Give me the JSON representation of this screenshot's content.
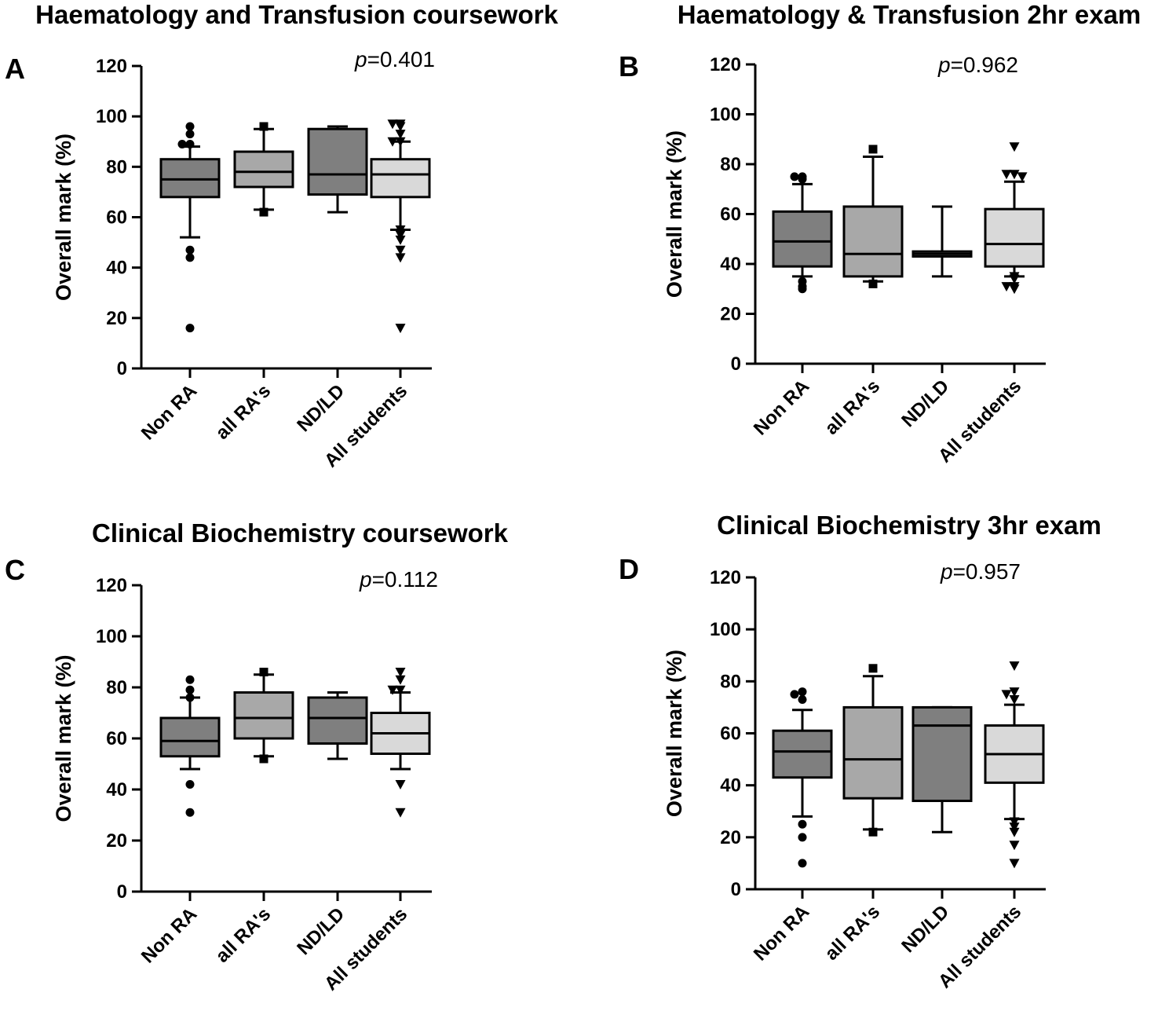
{
  "chart_data": [
    {
      "panel": "A",
      "title": "Haematology and Transfusion coursework",
      "type": "box",
      "ylabel": "Overall mark (%)",
      "xlabel": "",
      "ylim": [
        0,
        120
      ],
      "yticks": [
        0,
        20,
        40,
        60,
        80,
        100,
        120
      ],
      "p_prefix": "p",
      "p_value": "=0.401",
      "categories": [
        "Non RA",
        "all RA's",
        "ND/LD",
        "All students"
      ],
      "boxes": [
        {
          "q1": 68,
          "median": 75,
          "q3": 83,
          "whisker_low": 52,
          "whisker_high": 88,
          "fill": "#7f7f7f",
          "marker": "circle",
          "outliers": [
            96,
            93,
            89,
            89,
            47,
            44,
            16
          ]
        },
        {
          "q1": 72,
          "median": 78,
          "q3": 86,
          "whisker_low": 63,
          "whisker_high": 95,
          "fill": "#a8a8a8",
          "marker": "square",
          "outliers": [
            96,
            62
          ]
        },
        {
          "q1": 69,
          "median": 77,
          "q3": 95,
          "whisker_low": 62,
          "whisker_high": 96,
          "fill": "#7f7f7f",
          "marker": "none",
          "outliers": []
        },
        {
          "q1": 68,
          "median": 77,
          "q3": 83,
          "whisker_low": 55,
          "whisker_high": 90,
          "fill": "#d9d9d9",
          "marker": "triangle",
          "outliers": [
            97,
            97,
            96,
            93,
            90,
            90,
            55,
            53,
            51,
            47,
            44,
            16
          ]
        }
      ]
    },
    {
      "panel": "B",
      "title": "Haematology & Transfusion 2hr exam",
      "type": "box",
      "ylabel": "Overall mark (%)",
      "xlabel": "",
      "ylim": [
        0,
        120
      ],
      "yticks": [
        0,
        20,
        40,
        60,
        80,
        100,
        120
      ],
      "p_prefix": "p",
      "p_value": "=0.962",
      "categories": [
        "Non RA",
        "all RA's",
        "ND/LD",
        "All students"
      ],
      "boxes": [
        {
          "q1": 39,
          "median": 49,
          "q3": 61,
          "whisker_low": 35,
          "whisker_high": 72,
          "fill": "#7f7f7f",
          "marker": "circle",
          "outliers": [
            75,
            75,
            74,
            33,
            31,
            30
          ]
        },
        {
          "q1": 35,
          "median": 44,
          "q3": 63,
          "whisker_low": 33,
          "whisker_high": 83,
          "fill": "#a8a8a8",
          "marker": "square",
          "outliers": [
            86,
            32
          ]
        },
        {
          "q1": 43,
          "median": 44,
          "q3": 45,
          "whisker_low": 35,
          "whisker_high": 63,
          "fill": "#7f7f7f",
          "marker": "none",
          "outliers": []
        },
        {
          "q1": 39,
          "median": 48,
          "q3": 62,
          "whisker_low": 35,
          "whisker_high": 73,
          "fill": "#d9d9d9",
          "marker": "triangle",
          "outliers": [
            87,
            76,
            76,
            75,
            35,
            34,
            31,
            31,
            30
          ]
        }
      ]
    },
    {
      "panel": "C",
      "title": "Clinical Biochemistry coursework",
      "type": "box",
      "ylabel": "Overall mark (%)",
      "xlabel": "",
      "ylim": [
        0,
        120
      ],
      "yticks": [
        0,
        20,
        40,
        60,
        80,
        100,
        120
      ],
      "p_prefix": "p",
      "p_value": "=0.112",
      "categories": [
        "Non RA",
        "all RA's",
        "ND/LD",
        "All students"
      ],
      "boxes": [
        {
          "q1": 53,
          "median": 59,
          "q3": 68,
          "whisker_low": 48,
          "whisker_high": 76,
          "fill": "#7f7f7f",
          "marker": "circle",
          "outliers": [
            83,
            79,
            76,
            42,
            31
          ]
        },
        {
          "q1": 60,
          "median": 68,
          "q3": 78,
          "whisker_low": 53,
          "whisker_high": 85,
          "fill": "#a8a8a8",
          "marker": "square",
          "outliers": [
            86,
            52
          ]
        },
        {
          "q1": 58,
          "median": 68,
          "q3": 76,
          "whisker_low": 52,
          "whisker_high": 78,
          "fill": "#7f7f7f",
          "marker": "none",
          "outliers": []
        },
        {
          "q1": 54,
          "median": 62,
          "q3": 70,
          "whisker_low": 48,
          "whisker_high": 78,
          "fill": "#d9d9d9",
          "marker": "triangle",
          "outliers": [
            86,
            83,
            79,
            79,
            42,
            31
          ]
        }
      ]
    },
    {
      "panel": "D",
      "title": "Clinical Biochemistry 3hr exam",
      "type": "box",
      "ylabel": "Overall mark (%)",
      "xlabel": "",
      "ylim": [
        0,
        120
      ],
      "yticks": [
        0,
        20,
        40,
        60,
        80,
        100,
        120
      ],
      "p_prefix": "p",
      "p_value": "=0.957",
      "categories": [
        "Non RA",
        "all RA's",
        "ND/LD",
        "All students"
      ],
      "boxes": [
        {
          "q1": 43,
          "median": 53,
          "q3": 61,
          "whisker_low": 28,
          "whisker_high": 69,
          "fill": "#7f7f7f",
          "marker": "circle",
          "outliers": [
            76,
            75,
            73,
            25,
            20,
            10
          ]
        },
        {
          "q1": 35,
          "median": 50,
          "q3": 70,
          "whisker_low": 23,
          "whisker_high": 82,
          "fill": "#a8a8a8",
          "marker": "square",
          "outliers": [
            85,
            22
          ]
        },
        {
          "q1": 34,
          "median": 63,
          "q3": 70,
          "whisker_low": 22,
          "whisker_high": 70,
          "fill": "#7f7f7f",
          "marker": "none",
          "outliers": []
        },
        {
          "q1": 41,
          "median": 52,
          "q3": 63,
          "whisker_low": 27,
          "whisker_high": 71,
          "fill": "#d9d9d9",
          "marker": "triangle",
          "outliers": [
            86,
            76,
            75,
            73,
            26,
            24,
            22,
            17,
            10
          ]
        }
      ]
    }
  ]
}
